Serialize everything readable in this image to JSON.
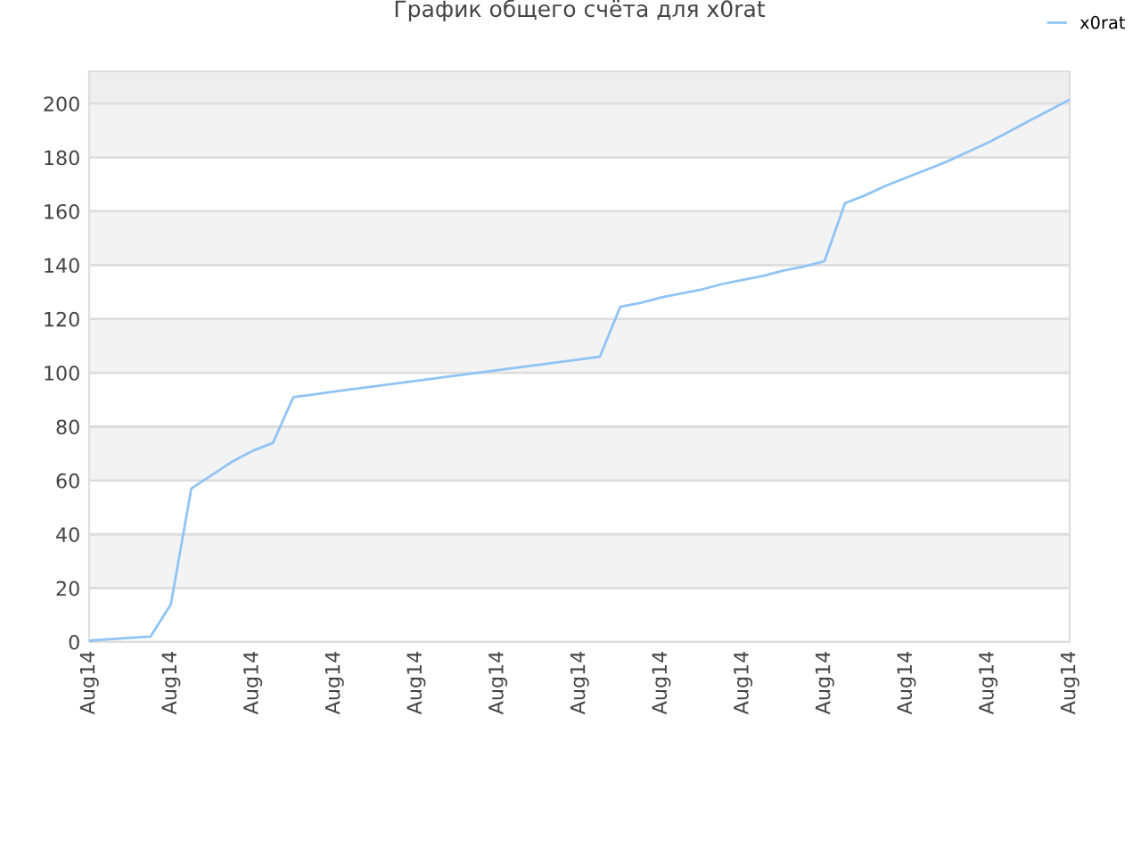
{
  "chart_data": {
    "type": "line",
    "title": "График общего счёта для x0rat",
    "categories": [
      "Aug14",
      null,
      null,
      null,
      "Aug14",
      null,
      null,
      null,
      "Aug14",
      null,
      null,
      null,
      "Aug14",
      null,
      null,
      null,
      "Aug14",
      null,
      null,
      null,
      "Aug14",
      null,
      null,
      null,
      "Aug14",
      null,
      null,
      null,
      "Aug14",
      null,
      null,
      null,
      "Aug14",
      null,
      null,
      null,
      "Aug14",
      null,
      null,
      null,
      "Aug14",
      null,
      null,
      null,
      "Aug14",
      null,
      null,
      null,
      "Aug14"
    ],
    "ylim": [
      0,
      212
    ],
    "yticks": [
      0,
      20,
      40,
      60,
      80,
      100,
      120,
      140,
      160,
      180,
      200
    ],
    "grid": "y",
    "legend": "top right",
    "marker": "none",
    "line_style": "solid",
    "series": [
      {
        "name": "x0rat",
        "color": "#90c4f4",
        "values": [
          0.5,
          1,
          1.5,
          2,
          14,
          57,
          62,
          67,
          71,
          74,
          91,
          92,
          93,
          94,
          95,
          96,
          97,
          98,
          99,
          100,
          101,
          102,
          103,
          104,
          105,
          106,
          124.5,
          126,
          128,
          129.5,
          131,
          133,
          134.5,
          136,
          138,
          139.5,
          141.5,
          163,
          166,
          169.5,
          172.5,
          175.5,
          178.5,
          182,
          185.5,
          189.5,
          193.5,
          197.5,
          201.5
        ]
      }
    ]
  }
}
